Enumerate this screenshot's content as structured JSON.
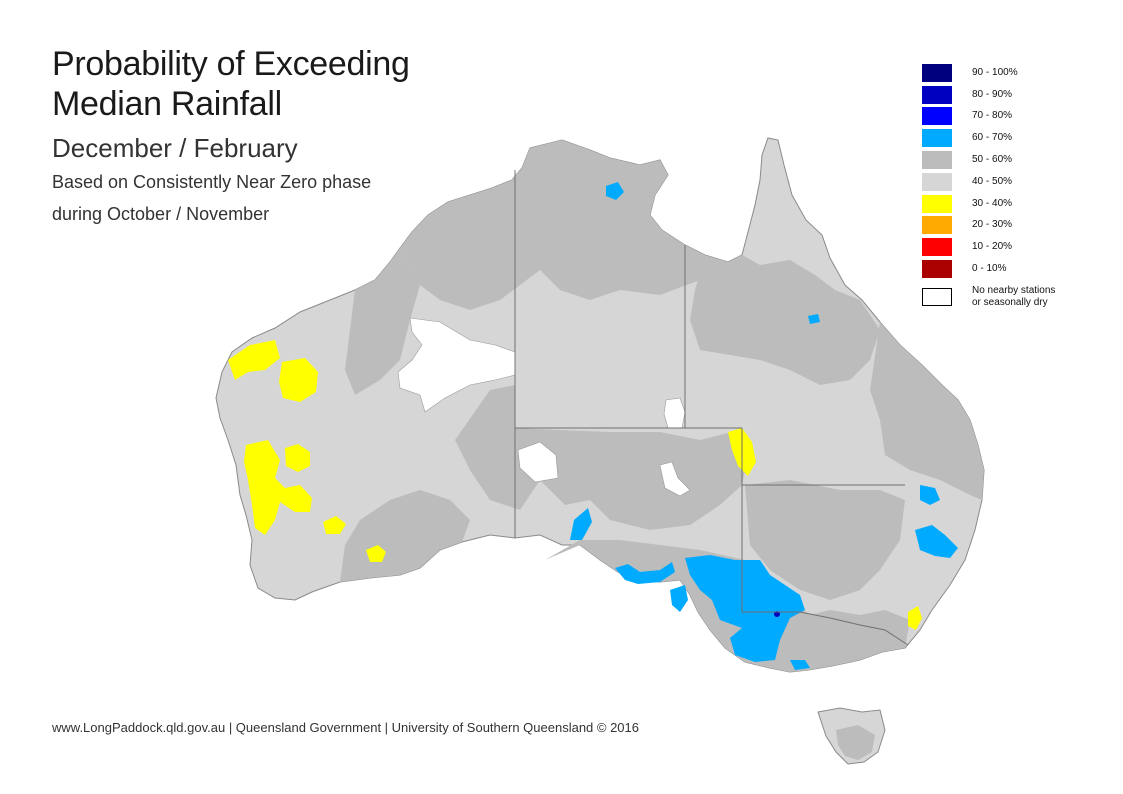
{
  "title_line1": "Probability of Exceeding",
  "title_line2": "Median Rainfall",
  "subtitle": "December / February",
  "description_line1": "Based on Consistently Near Zero phase",
  "description_line2": "during October / November",
  "legend": [
    {
      "label": "90 - 100%",
      "color": "#00007f"
    },
    {
      "label": "80 - 90%",
      "color": "#0000c0"
    },
    {
      "label": "70 - 80%",
      "color": "#0000ff"
    },
    {
      "label": "60 - 70%",
      "color": "#00aaff"
    },
    {
      "label": "50 - 60%",
      "color": "#bcbcbc"
    },
    {
      "label": "40 - 50%",
      "color": "#d6d6d6"
    },
    {
      "label": "30 - 40%",
      "color": "#ffff00"
    },
    {
      "label": "20 - 30%",
      "color": "#ffaa00"
    },
    {
      "label": "10 - 20%",
      "color": "#ff0000"
    },
    {
      "label": "0 - 10%",
      "color": "#aa0000"
    },
    {
      "label": "No nearby stations\nor seasonally dry",
      "color": "#ffffff"
    }
  ],
  "footer": "www.LongPaddock.qld.gov.au | Queensland Government | University of Southern Queensland © 2016"
}
